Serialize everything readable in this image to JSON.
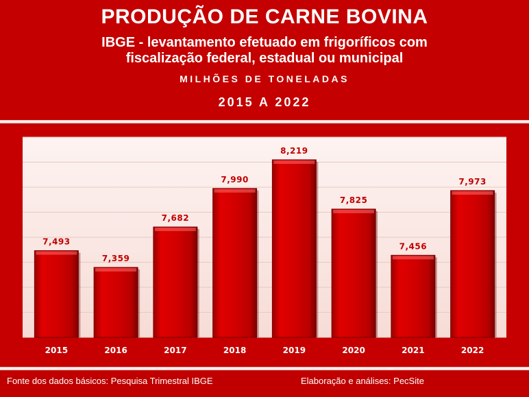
{
  "header": {
    "title": "PRODUÇÃO DE CARNE BOVINA",
    "subtitle_line1": "IBGE - levantamento efetuado em frigoríficos com",
    "subtitle_line2": "fiscalização federal, estadual ou municipal",
    "unit": "MILHÕES DE TONELADAS",
    "period": "2015 A 2022"
  },
  "footer": {
    "source": "Fonte dos dados básicos: Pesquisa Trimestral IBGE",
    "author": "Elaboração e análises: PecSite"
  },
  "colors": {
    "background": "#c00000",
    "plot_area": "#fbe9e7",
    "bar": "#d40000",
    "bar_dark": "#8a0000",
    "label_text": "#c00000",
    "tick_text": "#ffffff"
  },
  "chart_data": {
    "type": "bar",
    "categories": [
      "2015",
      "2016",
      "2017",
      "2018",
      "2019",
      "2020",
      "2021",
      "2022"
    ],
    "values": [
      7.493,
      7.359,
      7.682,
      7.99,
      8.219,
      7.825,
      7.456,
      7.973
    ],
    "data_labels": [
      "7,493",
      "7,359",
      "7,682",
      "7,990",
      "8,219",
      "7,825",
      "7,456",
      "7,973"
    ],
    "ylim": [
      6.8,
      8.4
    ],
    "grid": true,
    "legend": "none"
  }
}
